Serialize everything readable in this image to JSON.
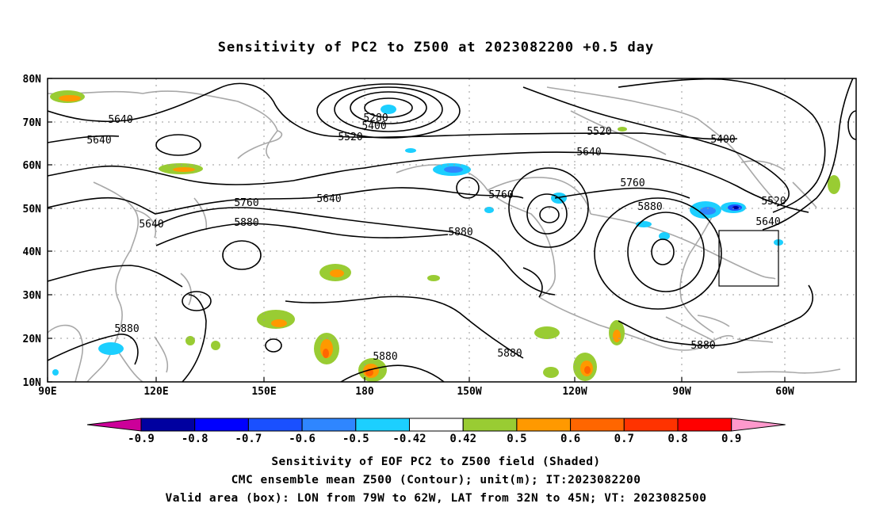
{
  "title": "Sensitivity of PC2 to Z500 at 2023082200 +0.5 day",
  "lat_labels": [
    "80N",
    "70N",
    "60N",
    "50N",
    "40N",
    "30N",
    "20N",
    "10N"
  ],
  "lon_labels": [
    "90E",
    "120E",
    "150E",
    "180",
    "150W",
    "120W",
    "90W",
    "60W"
  ],
  "contour_labels": [
    "5640",
    "5640",
    "5640",
    "5640",
    "5280",
    "5400",
    "5520",
    "5520",
    "5640",
    "5400",
    "5520",
    "5640",
    "5760",
    "5760",
    "5880",
    "5760",
    "5880",
    "5880",
    "5880",
    "5880",
    "5880",
    "5880"
  ],
  "colorbar": {
    "labels": [
      "-0.9",
      "-0.8",
      "-0.7",
      "-0.6",
      "-0.5",
      "-0.42",
      "0.42",
      "0.5",
      "0.6",
      "0.7",
      "0.8",
      "0.9"
    ],
    "colors": [
      "#cc0099",
      "#0000a0",
      "#0000ff",
      "#1a50ff",
      "#2f86ff",
      "#1ccfff",
      "#ffffff",
      "#99cc33",
      "#ff9900",
      "#ff6600",
      "#ff3300",
      "#ff0000",
      "#ff99cc"
    ]
  },
  "valid_box": {
    "lon_from": "79W",
    "lon_to": "62W",
    "lat_from": "32N",
    "lat_to": "45N"
  },
  "captions": [
    "Sensitivity of EOF PC2 to Z500 field (Shaded)",
    "CMC ensemble mean Z500 (Contour); unit(m); IT:2023082200",
    "Valid area (box): LON from 79W to 62W, LAT from 32N to 45N; VT: 2023082500"
  ]
}
